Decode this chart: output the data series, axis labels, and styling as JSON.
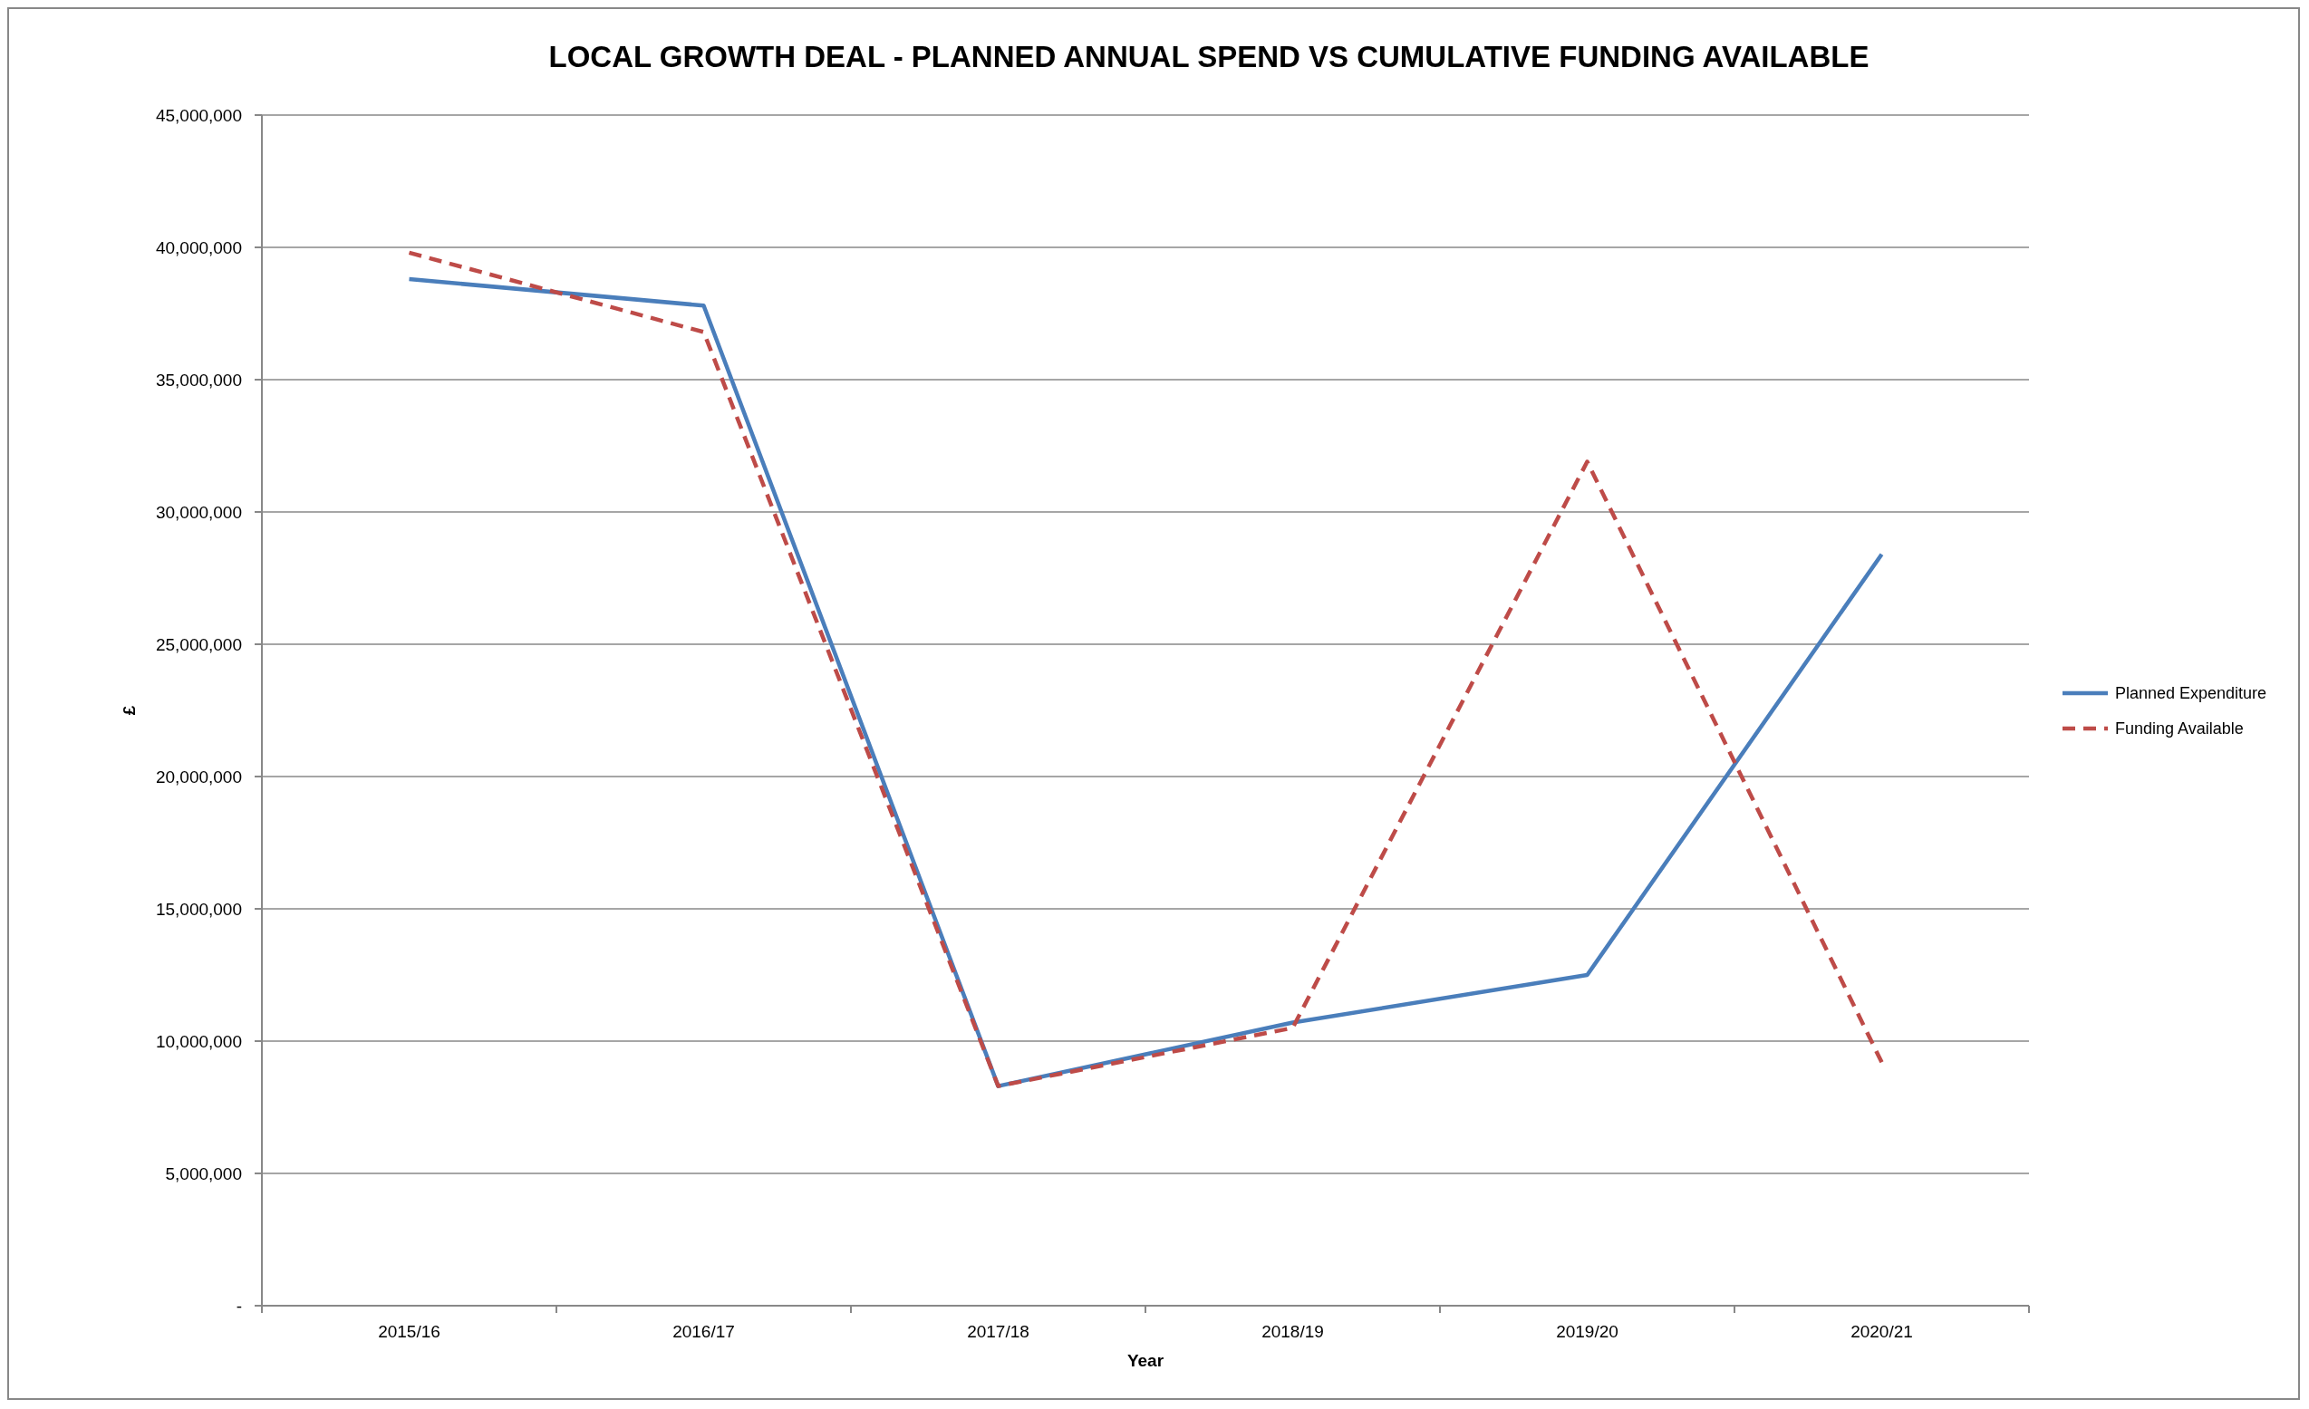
{
  "chart_data": {
    "type": "line",
    "title": "LOCAL GROWTH DEAL - PLANNED ANNUAL SPEND VS CUMULATIVE FUNDING AVAILABLE",
    "xlabel": "Year",
    "ylabel": "£",
    "categories": [
      "2015/16",
      "2016/17",
      "2017/18",
      "2018/19",
      "2019/20",
      "2020/21"
    ],
    "series": [
      {
        "name": "Planned Expenditure",
        "color": "#4a7ebb",
        "line_style": "solid",
        "values": [
          38800000,
          37800000,
          8300000,
          10700000,
          12500000,
          28400000
        ]
      },
      {
        "name": "Funding Available",
        "color": "#be4b48",
        "line_style": "dashed",
        "values": [
          39800000,
          36800000,
          8300000,
          10500000,
          31900000,
          9200000
        ]
      }
    ],
    "ylim": [
      0,
      45000000
    ],
    "yticks": [
      {
        "value": 0,
        "label": "-"
      },
      {
        "value": 5000000,
        "label": "5,000,000"
      },
      {
        "value": 10000000,
        "label": "10,000,000"
      },
      {
        "value": 15000000,
        "label": "15,000,000"
      },
      {
        "value": 20000000,
        "label": "20,000,000"
      },
      {
        "value": 25000000,
        "label": "25,000,000"
      },
      {
        "value": 30000000,
        "label": "30,000,000"
      },
      {
        "value": 35000000,
        "label": "35,000,000"
      },
      {
        "value": 40000000,
        "label": "40,000,000"
      },
      {
        "value": 45000000,
        "label": "45,000,000"
      }
    ],
    "grid": "y",
    "legend": "right"
  }
}
